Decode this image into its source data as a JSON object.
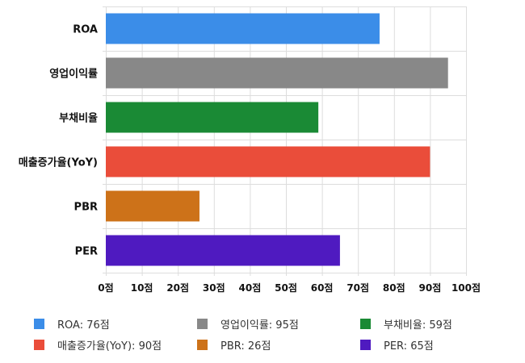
{
  "chart_data": {
    "type": "bar",
    "orientation": "horizontal",
    "categories": [
      "ROA",
      "영업이익률",
      "부채비율",
      "매출증가율(YoY)",
      "PBR",
      "PER"
    ],
    "values": [
      76,
      95,
      59,
      90,
      26,
      65
    ],
    "colors": [
      "#3b8de8",
      "#888888",
      "#1a8a35",
      "#ea4d3a",
      "#cd7219",
      "#4f1ac0"
    ],
    "xlim": [
      0,
      100
    ],
    "x_ticks": [
      0,
      10,
      20,
      30,
      40,
      50,
      60,
      70,
      80,
      90,
      100
    ],
    "x_tick_suffix": "점",
    "grid": true,
    "legend_position": "bottom"
  },
  "legend": [
    {
      "label": "ROA: 76점",
      "color": "#3b8de8"
    },
    {
      "label": "영업이익률: 95점",
      "color": "#888888"
    },
    {
      "label": "부채비율: 59점",
      "color": "#1a8a35"
    },
    {
      "label": "매출증가율(YoY): 90점",
      "color": "#ea4d3a"
    },
    {
      "label": "PBR: 26점",
      "color": "#cd7219"
    },
    {
      "label": "PER: 65점",
      "color": "#4f1ac0"
    }
  ]
}
